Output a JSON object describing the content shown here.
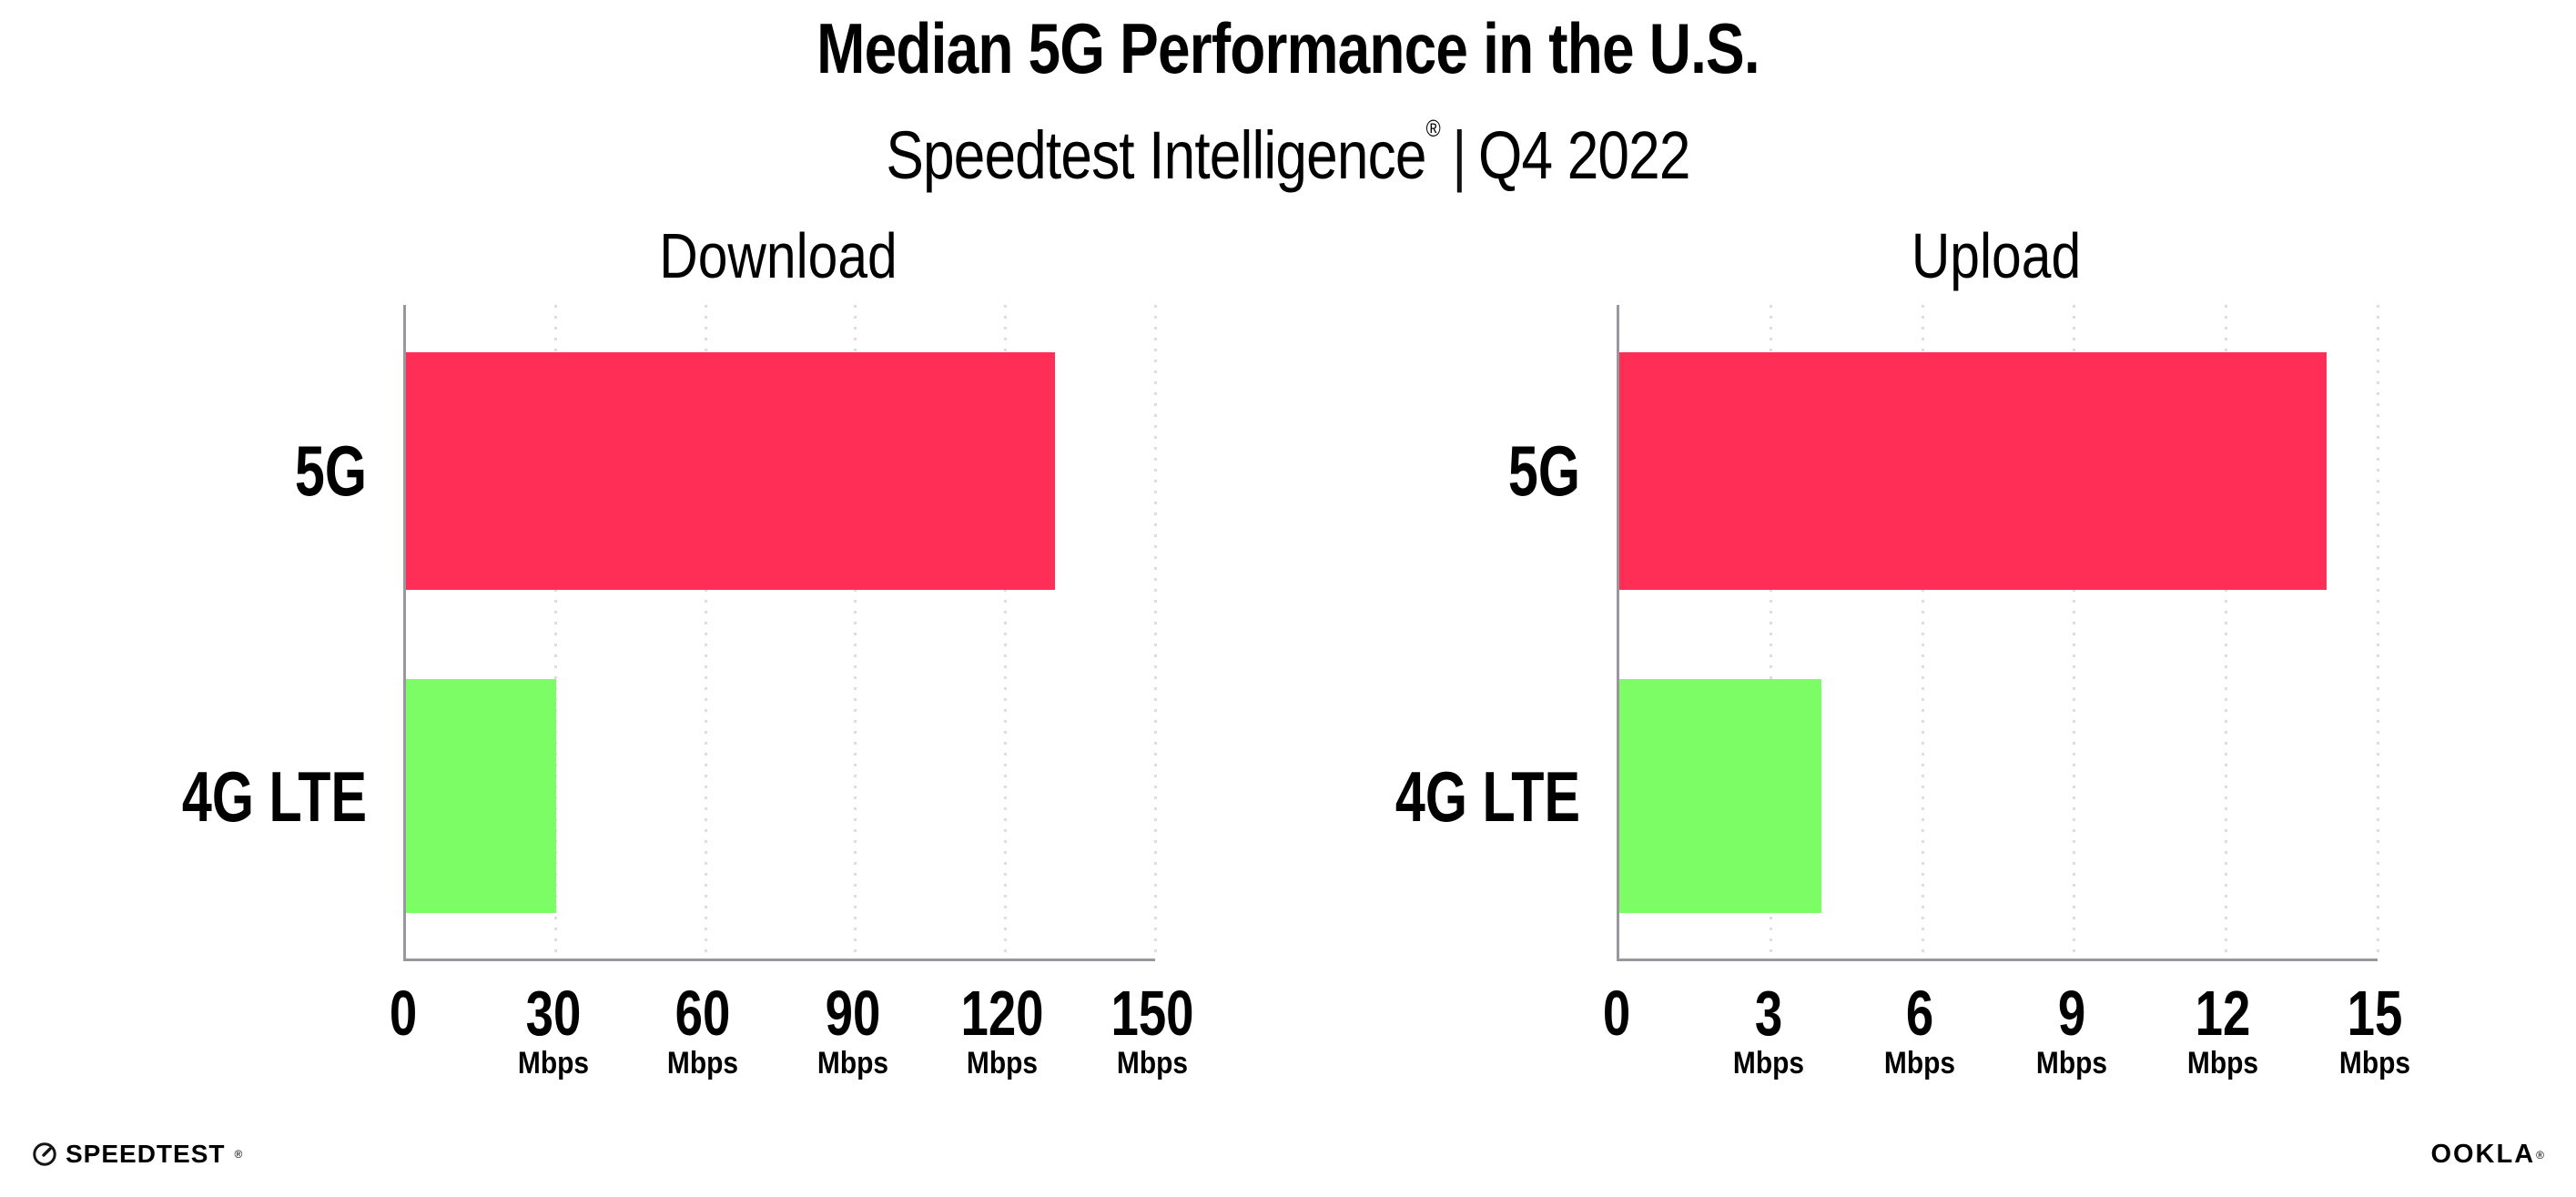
{
  "chart_data": {
    "type": "bar",
    "orientation": "horizontal",
    "title": "Median 5G Performance in the U.S.",
    "subtitle": "Speedtest Intelligence® | Q4 2022",
    "subtitle_parts": {
      "brand": "Speedtest Intelligence",
      "reg": "®",
      "divider": "|",
      "period": "Q4 2022"
    },
    "legend": "none",
    "grid": "dotted-vertical",
    "series_colors": {
      "5G": "#FF2E56",
      "4G LTE": "#7CFD65"
    },
    "panels": [
      {
        "title": "Download",
        "categories": [
          "5G",
          "4G LTE"
        ],
        "values_mbps": [
          130,
          30
        ],
        "xlim": [
          0,
          150
        ],
        "xticks": [
          0,
          30,
          60,
          90,
          120,
          150
        ],
        "tick_unit_label": "Mbps"
      },
      {
        "title": "Upload",
        "categories": [
          "5G",
          "4G LTE"
        ],
        "values_mbps": [
          14,
          4
        ],
        "xlim": [
          0,
          15
        ],
        "xticks": [
          0,
          3,
          6,
          9,
          12,
          15
        ],
        "tick_unit_label": "Mbps"
      }
    ]
  },
  "colors": {
    "bar_5g": "#FF2E56",
    "bar_4g": "#7CFD65",
    "axis": "#97979D",
    "grid_dots": "#DCDCE8",
    "text": "#000000"
  },
  "footer": {
    "speedtest_label": "SPEEDTEST",
    "speedtest_mark": "®",
    "ookla_label": "OOKLA",
    "ookla_mark": "®"
  }
}
